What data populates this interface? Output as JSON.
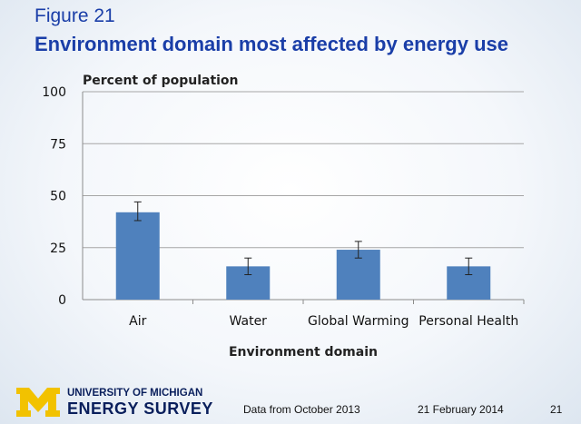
{
  "slide": {
    "figure_label": "Figure 21",
    "title": "Environment domain most affected by energy use",
    "page_number": "21"
  },
  "footer": {
    "data_note": "Data from October 2013",
    "date": "21 February 2014",
    "logo_line1": "UNIVERSITY OF MICHIGAN",
    "logo_line2": "ENERGY SURVEY",
    "logo_letter": "M",
    "logo_color": "#f2c200"
  },
  "chart_data": {
    "type": "bar",
    "title": "",
    "ylabel": "Percent of population",
    "xlabel": "Environment domain",
    "categories": [
      "Air",
      "Water",
      "Global Warming",
      "Personal Health"
    ],
    "values": [
      42,
      16,
      24,
      16
    ],
    "error_low": [
      38,
      12,
      20,
      12
    ],
    "error_high": [
      47,
      20,
      28,
      20
    ],
    "ylim": [
      0,
      100
    ],
    "yticks": [
      0,
      25,
      50,
      75,
      100
    ],
    "grid": true,
    "bar_color": "#4f81bd"
  }
}
